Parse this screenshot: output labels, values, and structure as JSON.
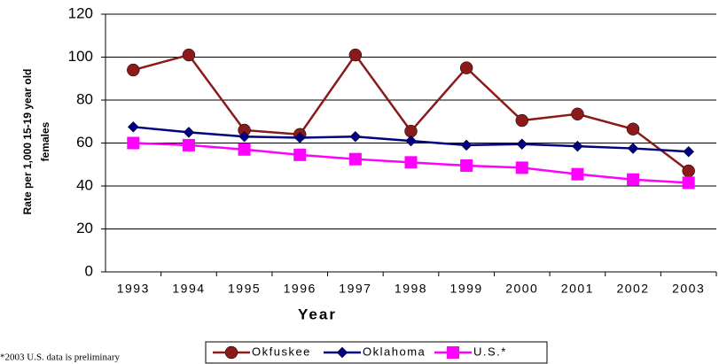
{
  "chart_data": {
    "type": "line",
    "x_label": "Year",
    "y_label": [
      "Rate per 1,000 15-19 year old",
      "females"
    ],
    "footnote": "*2003 U.S. data is preliminary",
    "categories": [
      "1993",
      "1994",
      "1995",
      "1996",
      "1997",
      "1998",
      "1999",
      "2000",
      "2001",
      "2002",
      "2003"
    ],
    "series": [
      {
        "name": "Okfuskee",
        "color": "#8b1a1a",
        "marker": "circle",
        "values": [
          94,
          101,
          66,
          64,
          101,
          65.5,
          95,
          70.5,
          73.5,
          66.5,
          47
        ]
      },
      {
        "name": "Oklahoma",
        "color": "#000080",
        "marker": "diamond",
        "values": [
          67.5,
          65,
          63,
          62.5,
          63,
          61,
          59,
          59.5,
          58.5,
          57.5,
          56
        ]
      },
      {
        "name": "U.S.*",
        "color": "#ff00ff",
        "marker": "square",
        "values": [
          60,
          59,
          57,
          54.5,
          52.5,
          51,
          49.5,
          48.5,
          45.5,
          43,
          41.5
        ]
      }
    ],
    "ylim": [
      0,
      120
    ],
    "yticks": [
      0,
      20,
      40,
      60,
      80,
      100,
      120
    ],
    "grid": true,
    "legend": "bottom"
  }
}
